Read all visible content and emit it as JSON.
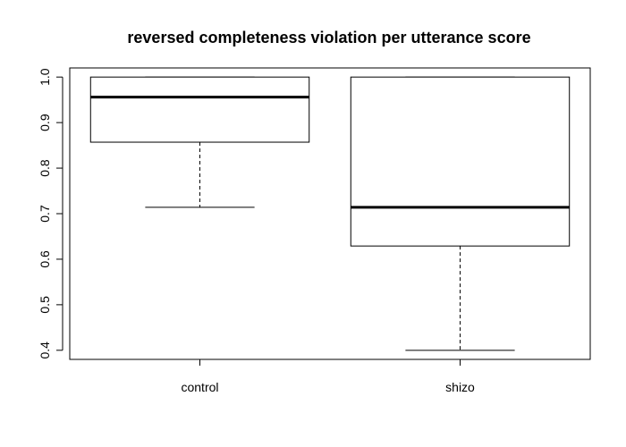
{
  "chart_data": {
    "type": "boxplot",
    "title": "reversed completeness violation per utterance score",
    "xlabel": "",
    "ylabel": "",
    "ylim": [
      0.38,
      1.02
    ],
    "yticks": [
      0.4,
      0.5,
      0.6,
      0.7,
      0.8,
      0.9,
      1.0
    ],
    "ytick_labels": [
      "0.4",
      "0.5",
      "0.6",
      "0.7",
      "0.8",
      "0.9",
      "1.0"
    ],
    "categories": [
      "control",
      "shizo"
    ],
    "boxes": [
      {
        "category": "control",
        "whisker_low": 0.714,
        "q1": 0.857,
        "median": 0.956,
        "q3": 1.0,
        "whisker_high": 1.0
      },
      {
        "category": "shizo",
        "whisker_low": 0.4,
        "q1": 0.629,
        "median": 0.714,
        "q3": 1.0,
        "whisker_high": 1.0
      }
    ],
    "grid": false,
    "legend": "none"
  }
}
